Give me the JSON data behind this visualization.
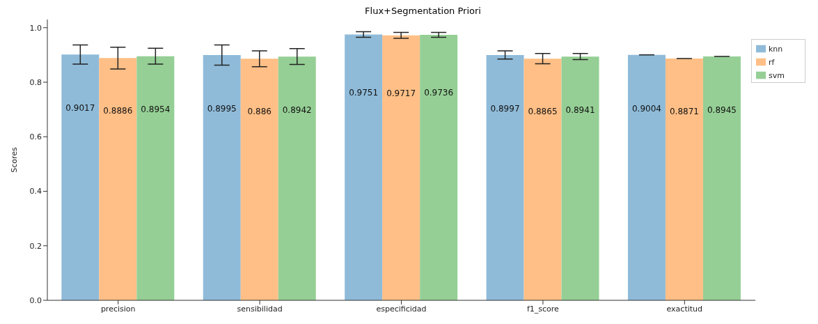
{
  "chart_data": {
    "type": "bar",
    "title": "Flux+Segmentation Priori",
    "ylabel": "Scores",
    "categories": [
      "precision",
      "sensibilidad",
      "especificidad",
      "f1_score",
      "exactitud"
    ],
    "series": [
      {
        "name": "knn",
        "color": "#8fbbd9",
        "values": [
          0.9017,
          0.8995,
          0.9751,
          0.8997,
          0.9004
        ],
        "errors": [
          0.035,
          0.037,
          0.01,
          0.015,
          0
        ]
      },
      {
        "name": "rf",
        "color": "#ffbf86",
        "values": [
          0.8886,
          0.886,
          0.9717,
          0.8865,
          0.8871
        ],
        "errors": [
          0.04,
          0.029,
          0.011,
          0.019,
          0
        ]
      },
      {
        "name": "svm",
        "color": "#95cf95",
        "values": [
          0.8954,
          0.8942,
          0.9736,
          0.8941,
          0.8945
        ],
        "errors": [
          0.029,
          0.029,
          0.009,
          0.011,
          0
        ]
      }
    ],
    "ylim": [
      0,
      1.03
    ],
    "yticks": [
      {
        "value": 0,
        "label": "0.0"
      },
      {
        "value": 0.2,
        "label": "0.2"
      },
      {
        "value": 0.4,
        "label": "0.4"
      },
      {
        "value": 0.6,
        "label": "0.6"
      },
      {
        "value": 0.8,
        "label": "0.8"
      },
      {
        "value": 1,
        "label": "1.0"
      }
    ],
    "data_labels": true,
    "legend": "top right",
    "grid": false
  }
}
